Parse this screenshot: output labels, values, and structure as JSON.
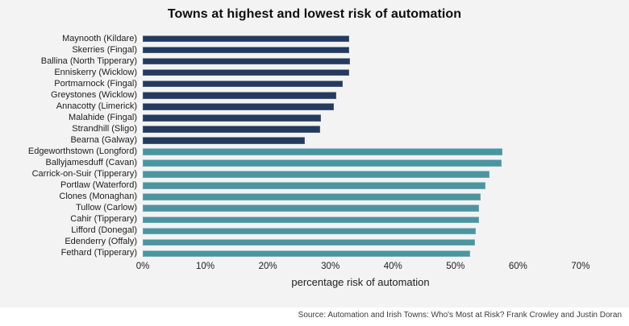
{
  "figure": {
    "background_color": "#f2f3f2",
    "footer_background_color": "#ffffff",
    "source_text": "Source: Automation and Irish Towns: Who's Most at Risk? Frank Crowley and Justin Doran"
  },
  "chart_data": {
    "type": "bar",
    "orientation": "horizontal",
    "title": "Towns at highest and lowest risk of automation",
    "xlabel": "percentage risk of automation",
    "ylabel": "",
    "xlim": [
      0,
      72.2
    ],
    "x_ticks": [
      0,
      10,
      20,
      30,
      40,
      50,
      60,
      70
    ],
    "x_tick_labels": [
      "0%",
      "10%",
      "20%",
      "30%",
      "40%",
      "50%",
      "60%",
      "70%"
    ],
    "grid": false,
    "legend_position": "none",
    "groups": [
      {
        "name": "lowest-risk",
        "color": "#243a5e"
      },
      {
        "name": "highest-risk",
        "color": "#4d94a1"
      }
    ],
    "bars": [
      {
        "label": "Maynooth (Kildare)",
        "value": 33.0,
        "group": "lowest-risk"
      },
      {
        "label": "Skerries (Fingal)",
        "value": 33.0,
        "group": "lowest-risk"
      },
      {
        "label": "Ballina (North Tipperary)",
        "value": 33.1,
        "group": "lowest-risk"
      },
      {
        "label": "Enniskerry (Wicklow)",
        "value": 33.0,
        "group": "lowest-risk"
      },
      {
        "label": "Portmarnock (Fingal)",
        "value": 32.0,
        "group": "lowest-risk"
      },
      {
        "label": "Greystones (Wicklow)",
        "value": 31.0,
        "group": "lowest-risk"
      },
      {
        "label": "Annacotty (Limerick)",
        "value": 30.6,
        "group": "lowest-risk"
      },
      {
        "label": "Malahide (Fingal)",
        "value": 28.5,
        "group": "lowest-risk"
      },
      {
        "label": "Strandhill (Sligo)",
        "value": 28.3,
        "group": "lowest-risk"
      },
      {
        "label": "Bearna (Galway)",
        "value": 25.9,
        "group": "lowest-risk"
      },
      {
        "label": "Edgeworthstown (Longford)",
        "value": 57.5,
        "group": "highest-risk"
      },
      {
        "label": "Ballyjamesduff (Cavan)",
        "value": 57.4,
        "group": "highest-risk"
      },
      {
        "label": "Carrick-on-Suir (Tipperary)",
        "value": 55.4,
        "group": "highest-risk"
      },
      {
        "label": "Portlaw (Waterford)",
        "value": 54.8,
        "group": "highest-risk"
      },
      {
        "label": "Clones (Monaghan)",
        "value": 54.0,
        "group": "highest-risk"
      },
      {
        "label": "Tullow (Carlow)",
        "value": 53.8,
        "group": "highest-risk"
      },
      {
        "label": "Cahir (Tipperary)",
        "value": 53.7,
        "group": "highest-risk"
      },
      {
        "label": "Lifford (Donegal)",
        "value": 53.2,
        "group": "highest-risk"
      },
      {
        "label": "Edenderry (Offaly)",
        "value": 53.1,
        "group": "highest-risk"
      },
      {
        "label": "Fethard (Tipperary)",
        "value": 52.4,
        "group": "highest-risk"
      }
    ]
  }
}
